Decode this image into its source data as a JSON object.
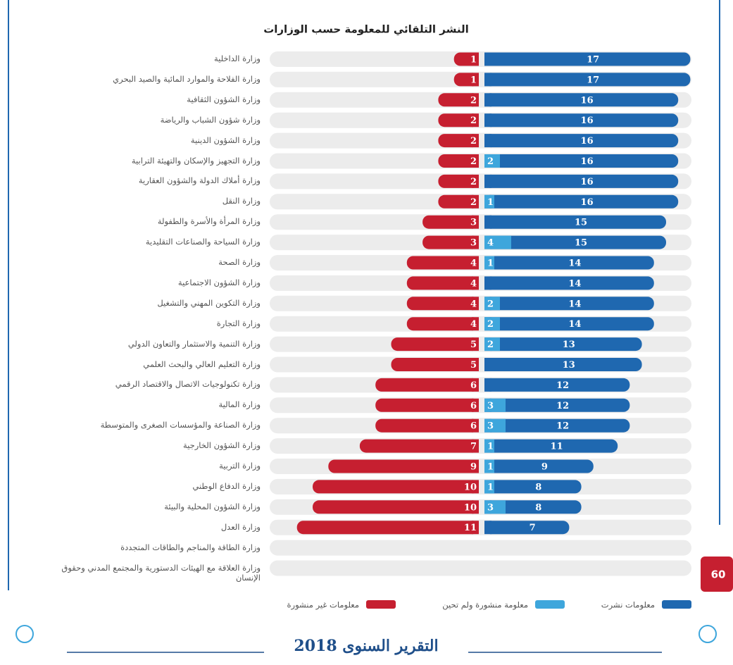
{
  "chart_data": {
    "type": "bar",
    "title": "النشر التلقائي للمعلومة حسب الوزارات",
    "categories": [
      "وزارة الداخلية",
      "وزارة الفلاحة والموارد المائية والصيد البحري",
      "وزارة الشؤون الثقافية",
      "وزارة شؤون الشباب والرياضة",
      "وزارة الشؤون الدينية",
      "وزارة التجهيز والإسكان والتهيئة الترابية",
      "وزارة أملاك الدولة والشؤون العقارية",
      "وزارة النقل",
      "وزارة المرأة والأسرة والطفولة",
      "وزارة السياحة والصناعات التقليدية",
      "وزارة الصحة",
      "وزارة الشؤون الاجتماعية",
      "وزارة التكوين المهني والتشغيل",
      "وزارة التجارة",
      "وزارة التنمية والاستثمار والتعاون الدولي",
      "وزارة التعليم العالي والبحث العلمي",
      "وزارة تكنولوجيات الاتصال والاقتصاد الرقمي",
      "وزارة المالية",
      "وزارة الصناعة والمؤسسات الصغرى والمتوسطة",
      "وزارة الشؤون الخارجية",
      "وزارة التربية",
      "وزارة الدفاع الوطني",
      "وزارة الشؤون المحلية والبيئة",
      "وزارة العدل",
      "وزارة الطاقة والمناجم والطاقات المتجددة",
      "وزارة العلاقة مع الهيئات الدستورية والمجتمع المدني وحقوق الإنسان"
    ],
    "series": [
      {
        "name": "معلومات نشرت",
        "color": "#1f68b0",
        "values": [
          17,
          17,
          16,
          16,
          16,
          16,
          16,
          16,
          15,
          15,
          14,
          14,
          14,
          14,
          13,
          13,
          12,
          12,
          12,
          11,
          9,
          8,
          8,
          7,
          null,
          null
        ]
      },
      {
        "name": "معلومة منشورة ولم تحين",
        "color": "#3ea6dc",
        "values": [
          null,
          null,
          null,
          null,
          null,
          2,
          null,
          1,
          null,
          4,
          1,
          null,
          2,
          2,
          2,
          null,
          null,
          3,
          3,
          1,
          1,
          1,
          3,
          null,
          null,
          null
        ]
      },
      {
        "name": "معلومات غير منشورة",
        "color": "#c61f30",
        "values": [
          1,
          1,
          2,
          2,
          2,
          2,
          2,
          2,
          3,
          3,
          4,
          4,
          4,
          4,
          5,
          5,
          6,
          6,
          6,
          7,
          9,
          10,
          10,
          11,
          null,
          null
        ]
      }
    ]
  },
  "page": {
    "number": 60,
    "footer": "التقرير السنوى 2018"
  }
}
